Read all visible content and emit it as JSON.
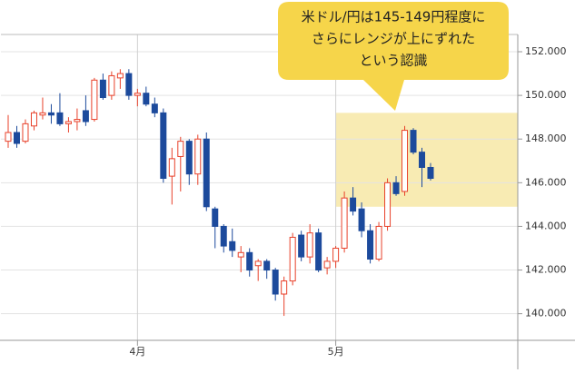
{
  "chart_data": {
    "type": "candlestick",
    "categories": [
      null,
      null,
      null,
      null,
      null,
      null,
      null,
      null,
      null,
      null,
      null,
      null,
      null,
      null,
      null,
      "4月",
      null,
      null,
      null,
      null,
      null,
      null,
      null,
      null,
      null,
      null,
      null,
      null,
      null,
      null,
      null,
      null,
      null,
      null,
      null,
      null,
      null,
      null,
      "5月",
      null,
      null,
      null,
      null,
      null,
      null,
      null,
      null,
      null,
      null,
      null
    ],
    "open": [
      147.9,
      148.3,
      147.9,
      148.6,
      149.1,
      149.2,
      149.2,
      148.7,
      148.8,
      149.3,
      148.9,
      150.7,
      150.0,
      150.8,
      151.0,
      150.0,
      150.1,
      149.6,
      149.2,
      146.3,
      147.2,
      147.9,
      146.4,
      148.0,
      144.8,
      144.0,
      143.3,
      142.6,
      142.8,
      142.2,
      142.4,
      142.0,
      140.9,
      141.5,
      143.6,
      142.6,
      143.7,
      142.1,
      142.4,
      143.0,
      145.3,
      144.8,
      143.8,
      142.5,
      144.0,
      146.0,
      145.6,
      148.4,
      147.4,
      146.7
    ],
    "high": [
      149.1,
      148.6,
      148.9,
      149.3,
      149.9,
      149.6,
      150.1,
      149.0,
      149.4,
      150.0,
      150.8,
      151.0,
      151.1,
      151.2,
      151.2,
      150.3,
      150.4,
      149.9,
      149.4,
      147.6,
      148.1,
      148.0,
      148.2,
      148.3,
      144.9,
      144.1,
      143.9,
      143.1,
      143.0,
      142.5,
      142.5,
      142.1,
      141.7,
      143.7,
      143.8,
      144.1,
      143.9,
      142.6,
      143.1,
      145.6,
      145.8,
      145.1,
      144.1,
      144.2,
      146.2,
      146.3,
      148.6,
      148.5,
      147.6,
      146.9
    ],
    "low": [
      147.6,
      147.6,
      147.8,
      148.4,
      148.9,
      148.7,
      148.6,
      148.3,
      148.4,
      148.6,
      148.8,
      149.8,
      149.8,
      150.3,
      149.8,
      149.5,
      149.5,
      149.0,
      146.0,
      145.0,
      145.6,
      145.9,
      145.9,
      144.7,
      143.0,
      142.8,
      142.6,
      141.9,
      141.7,
      141.5,
      141.6,
      140.6,
      139.9,
      141.3,
      142.4,
      142.3,
      141.9,
      141.8,
      142.1,
      142.8,
      144.5,
      143.5,
      142.3,
      142.4,
      143.8,
      145.4,
      145.4,
      147.3,
      145.8,
      146.1
    ],
    "close": [
      148.3,
      147.8,
      148.7,
      149.2,
      149.2,
      149.1,
      148.7,
      148.8,
      148.9,
      148.8,
      150.7,
      149.9,
      150.9,
      151.0,
      150.0,
      150.1,
      149.6,
      149.2,
      146.2,
      147.1,
      147.9,
      146.4,
      148.0,
      144.9,
      144.0,
      143.1,
      142.9,
      142.8,
      142.0,
      142.4,
      142.0,
      140.9,
      141.5,
      143.5,
      142.6,
      143.7,
      142.0,
      142.4,
      143.0,
      145.3,
      144.7,
      143.8,
      142.5,
      144.0,
      146.0,
      145.5,
      148.4,
      147.4,
      146.7,
      146.2
    ],
    "up_color": "#e8412a",
    "down_color": "#1c4a9c",
    "ylim": [
      138.78,
      152.79
    ],
    "yticks": [
      {
        "value": 140,
        "label": "140.000"
      },
      {
        "value": 142,
        "label": "142.000"
      },
      {
        "value": 144,
        "label": "144.000"
      },
      {
        "value": 146,
        "label": "146.000"
      },
      {
        "value": 148,
        "label": "148.000"
      },
      {
        "value": 150,
        "label": "150.000"
      },
      {
        "value": 152,
        "label": "152.000"
      }
    ],
    "grid": true,
    "highlight": {
      "ylim": [
        144.9,
        149.2
      ],
      "color": "#f7e7a6"
    },
    "annotation": {
      "lines": [
        "米ドル/円は145-149円程度に",
        "さらにレンジが上にずれた",
        "という認識"
      ],
      "color": "#f6d54a"
    }
  }
}
